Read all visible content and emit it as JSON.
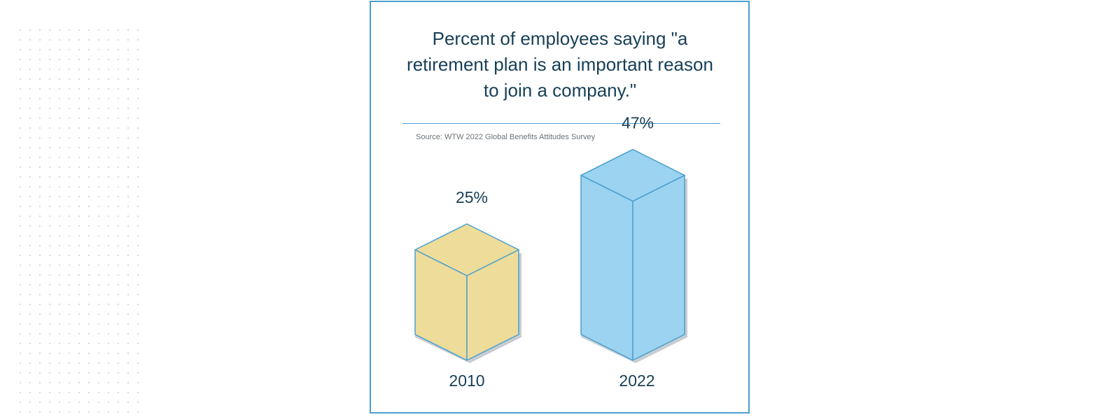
{
  "chart_data": {
    "type": "bar",
    "title": "Percent of employees saying \"a retirement plan is an important reason to join a company.\"",
    "source": "Source: WTW 2022 Global Benefits Attitudes Survey",
    "categories": [
      "2010",
      "2022"
    ],
    "values": [
      25,
      47
    ],
    "value_labels": [
      "25%",
      "47%"
    ],
    "ylim": [
      0,
      50
    ],
    "grid": false,
    "colors": {
      "bars": [
        "#eedc9a",
        "#9bd3f0"
      ],
      "edges": "#4aa0cf",
      "shadow": "#c8cdd1",
      "text": "#173f57",
      "border": "#4aa0cf"
    }
  }
}
